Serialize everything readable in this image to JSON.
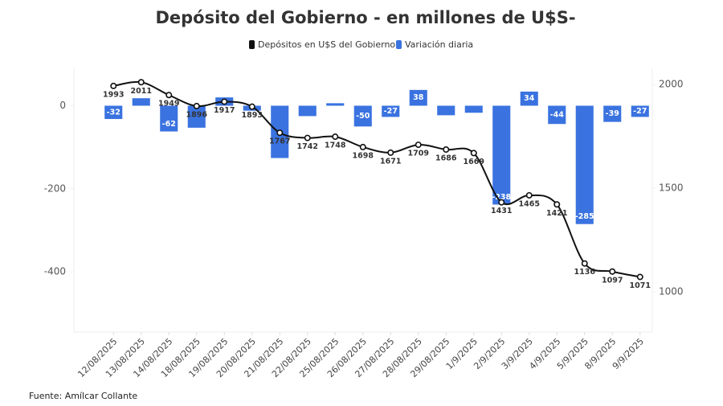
{
  "chart_data": {
    "type": "combo",
    "title": "Depósito del Gobierno - en millones de U$S-",
    "categories": [
      "12/08/2025",
      "13/08/2025",
      "14/08/2025",
      "18/08/2025",
      "19/08/2025",
      "20/08/2025",
      "21/08/2025",
      "22/08/2025",
      "25/08/2025",
      "26/08/2025",
      "27/08/2025",
      "28/08/2025",
      "29/08/2025",
      "1/9/2025",
      "2/9/2025",
      "3/9/2025",
      "4/9/2025",
      "5/9/2025",
      "8/9/2025",
      "9/9/2025"
    ],
    "series": [
      {
        "name": "Depósitos en U$S del Gobierno",
        "color": "#111111",
        "kind": "line",
        "axis": "y2",
        "values": [
          1993,
          2011,
          1949,
          1896,
          1917,
          1893,
          1767,
          1742,
          1748,
          1698,
          1671,
          1709,
          1686,
          1669,
          1431,
          1465,
          1421,
          1136,
          1097,
          1071
        ]
      },
      {
        "name": "Variación diaria",
        "color": "#3a73e0",
        "kind": "bar",
        "values": [
          -32,
          18,
          -62,
          -53,
          20,
          -12,
          -126,
          -25,
          6,
          -50,
          -27,
          38,
          -23,
          -17,
          -238,
          34,
          -44,
          -285,
          -39,
          -27
        ],
        "value_labels": [
          "-32",
          null,
          "-62",
          null,
          null,
          null,
          null,
          null,
          null,
          "-50",
          "-27",
          "38",
          null,
          null,
          "-238",
          "34",
          "-44",
          "-285",
          "-39",
          "-27"
        ]
      }
    ],
    "ylim": [
      -545,
      90
    ],
    "yticks": [
      0,
      -200,
      -400
    ],
    "y2lim": [
      805,
      2078
    ],
    "y2ticks": [
      2000,
      1500,
      1000
    ],
    "source": "Fuente: Amílcar Collante"
  }
}
